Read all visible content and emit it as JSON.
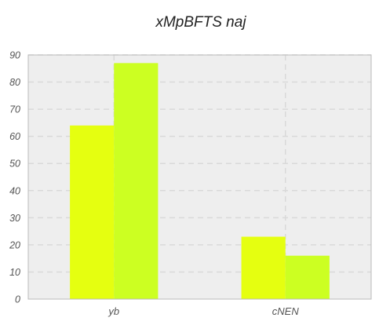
{
  "chart_data": {
    "type": "bar",
    "title": "xMpBFTS naj",
    "xlabel": "",
    "ylabel": "",
    "categories": [
      "yb",
      "cNEN"
    ],
    "series": [
      {
        "values": [
          64,
          23
        ],
        "color": "#e5ff10"
      },
      {
        "values": [
          87,
          16
        ],
        "color": "#ccff22"
      }
    ],
    "ylim": [
      0,
      90
    ],
    "yticks": [
      0,
      10,
      20,
      30,
      40,
      50,
      60,
      70,
      80,
      90
    ],
    "grid": true,
    "legend": "none",
    "colors": {
      "plot_background": "#eeeeee",
      "grid": "#d9d9d9",
      "axis": "#bbbbbb"
    }
  }
}
